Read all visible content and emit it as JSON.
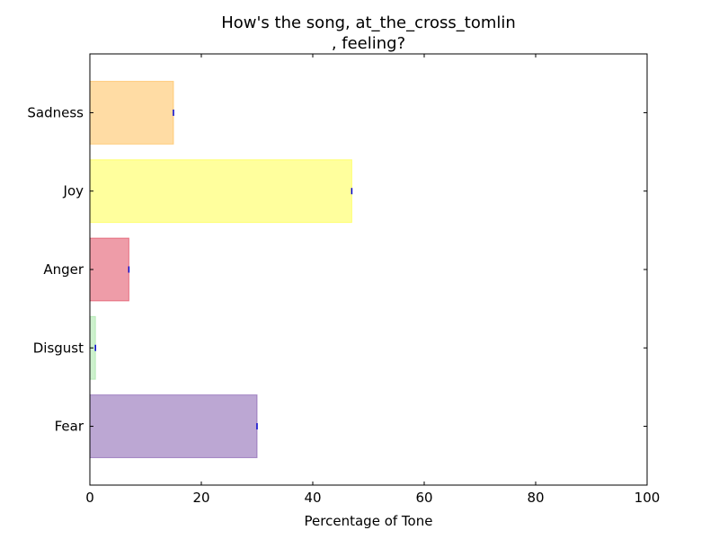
{
  "chart_data": {
    "type": "bar",
    "orientation": "horizontal",
    "title_lines": [
      "How's the song, at_the_cross_tomlin",
      ", feeling?"
    ],
    "xlabel": "Percentage of Tone",
    "ylabel": "",
    "xlim": [
      0,
      100
    ],
    "x_ticks": [
      0,
      20,
      40,
      60,
      80,
      100
    ],
    "x_tick_labels": [
      "0",
      "20",
      "40",
      "60",
      "80",
      "100"
    ],
    "categories": [
      "Fear",
      "Disgust",
      "Anger",
      "Joy",
      "Sadness"
    ],
    "values": [
      30,
      1,
      7,
      47,
      15
    ],
    "colors": [
      "#7a4fa8",
      "#9be39b",
      "#de3a52",
      "#ffff3c",
      "#ffb94a"
    ],
    "grid": false,
    "legend": "none"
  }
}
